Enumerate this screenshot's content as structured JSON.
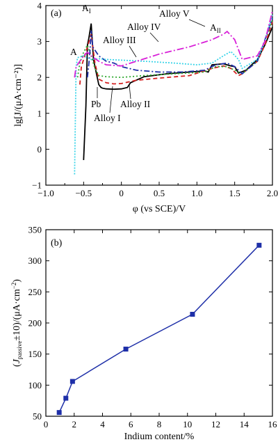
{
  "chart_data": [
    {
      "panel": "(a)",
      "type": "line",
      "xlabel": "φ (vs SCE)/V",
      "ylabel": "lg[J/(μA·cm⁻²)]",
      "xlim": [
        -1.0,
        2.0
      ],
      "ylim": [
        -1,
        4
      ],
      "xticks": [
        "−1.0",
        "−0.5",
        "0",
        "0.5",
        "1.0",
        "1.5",
        "2.0"
      ],
      "yticks": [
        "−1",
        "0",
        "1",
        "2",
        "3",
        "4"
      ],
      "grid": false,
      "series": [
        {
          "name": "Pb",
          "color": "#000000",
          "dash": "solid",
          "x": [
            -0.5,
            -0.47,
            -0.45,
            -0.43,
            -0.4,
            -0.37,
            -0.33,
            -0.3,
            -0.27,
            -0.25,
            -0.2,
            -0.1,
            0,
            0.08,
            0.12,
            0.3,
            0.6,
            0.9,
            1.1,
            1.15,
            1.2,
            1.35,
            1.45,
            1.5,
            1.55,
            1.65,
            1.8,
            1.9,
            2.0
          ],
          "y": [
            -0.3,
            1.2,
            2.9,
            3.1,
            3.5,
            2.5,
            2.1,
            1.8,
            1.72,
            1.7,
            1.68,
            1.67,
            1.68,
            1.72,
            1.85,
            2.02,
            2.1,
            2.15,
            2.18,
            2.15,
            2.35,
            2.38,
            2.32,
            2.3,
            2.12,
            2.2,
            2.5,
            2.9,
            3.4
          ]
        },
        {
          "name": "Alloy I",
          "color": "#d42020",
          "dash": "6,4",
          "x": [
            -0.55,
            -0.53,
            -0.5,
            -0.45,
            -0.4,
            -0.35,
            -0.3,
            -0.2,
            -0.1,
            0,
            0.2,
            0.5,
            0.9,
            1.2,
            1.35,
            1.45,
            1.55,
            1.6,
            1.8,
            1.9,
            2.0
          ],
          "y": [
            1.8,
            2.3,
            2.5,
            2.85,
            3.2,
            2.4,
            1.95,
            1.85,
            1.82,
            1.83,
            1.92,
            1.98,
            2.05,
            2.25,
            2.32,
            2.25,
            2.05,
            2.1,
            2.45,
            2.9,
            3.55
          ]
        },
        {
          "name": "Alloy II",
          "color": "#2ea82e",
          "dash": "2,3",
          "x": [
            -0.58,
            -0.55,
            -0.5,
            -0.45,
            -0.4,
            -0.35,
            -0.3,
            -0.2,
            0,
            0.3,
            0.7,
            1.1,
            1.25,
            1.4,
            1.5,
            1.6,
            1.8,
            2.0
          ],
          "y": [
            2.0,
            2.4,
            2.7,
            2.9,
            2.6,
            2.25,
            2.05,
            2.02,
            2.0,
            2.05,
            2.1,
            2.15,
            2.3,
            2.3,
            2.2,
            2.1,
            2.45,
            3.6
          ]
        },
        {
          "name": "Alloy III",
          "color": "#1e2fa8",
          "dash": "8,3,2,3",
          "x": [
            -0.45,
            -0.42,
            -0.4,
            -0.38,
            -0.3,
            -0.2,
            -0.1,
            0,
            0.2,
            0.5,
            0.8,
            1.1,
            1.25,
            1.4,
            1.5,
            1.6,
            1.8,
            2.0
          ],
          "y": [
            2.0,
            2.6,
            3.3,
            2.85,
            2.6,
            2.45,
            2.4,
            2.3,
            2.2,
            2.15,
            2.15,
            2.2,
            2.35,
            2.4,
            2.3,
            2.1,
            2.45,
            3.65
          ]
        },
        {
          "name": "Alloy IV",
          "color": "#3ad4e8",
          "dash": "2,2",
          "x": [
            -0.62,
            -0.61,
            -0.6,
            -0.58,
            -0.5,
            -0.45,
            -0.4,
            -0.3,
            -0.2,
            0,
            0.3,
            0.7,
            1.0,
            1.2,
            1.35,
            1.45,
            1.55,
            1.6,
            1.8,
            1.9,
            2.0
          ],
          "y": [
            -0.7,
            0.8,
            2.3,
            2.55,
            2.6,
            2.55,
            2.5,
            2.52,
            2.5,
            2.48,
            2.45,
            2.4,
            2.35,
            2.4,
            2.6,
            2.72,
            2.5,
            2.25,
            2.5,
            3.0,
            3.75
          ]
        },
        {
          "name": "Alloy V",
          "color": "#d81fd8",
          "dash": "10,3,2,3",
          "x": [
            -0.62,
            -0.6,
            -0.55,
            -0.5,
            -0.45,
            -0.4,
            -0.3,
            -0.2,
            0,
            0.2,
            0.5,
            0.9,
            1.2,
            1.35,
            1.4,
            1.5,
            1.6,
            1.8,
            1.9,
            2.0
          ],
          "y": [
            2.0,
            2.3,
            2.45,
            2.6,
            2.7,
            2.6,
            2.45,
            2.35,
            2.32,
            2.45,
            2.65,
            2.85,
            3.05,
            3.2,
            3.28,
            3.05,
            2.5,
            2.6,
            3.0,
            3.85
          ]
        }
      ],
      "annotations": [
        {
          "text": "A",
          "sub": "I"
        },
        {
          "text": "A",
          "sub": ""
        },
        {
          "text": "A",
          "sub": "II"
        },
        {
          "text": "Alloy V"
        },
        {
          "text": "Alloy IV"
        },
        {
          "text": "Alloy III"
        },
        {
          "text": "Pb"
        },
        {
          "text": "Alloy II"
        },
        {
          "text": "Alloy I"
        }
      ]
    },
    {
      "panel": "(b)",
      "type": "line",
      "xlabel": "Indium content/%",
      "ylabel": "(J passive ±10)/(μA·cm⁻²)",
      "xlim": [
        -1,
        16
      ],
      "ylim": [
        50,
        350
      ],
      "xticks": [
        "0",
        "2",
        "4",
        "6",
        "8",
        "10",
        "12",
        "14",
        "16"
      ],
      "yticks": [
        "50",
        "100",
        "150",
        "200",
        "250",
        "300",
        "350"
      ],
      "grid": false,
      "series": [
        {
          "color": "#1e2fa8",
          "marker": "square",
          "x": [
            0,
            0.5,
            1,
            5,
            10,
            15
          ],
          "y": [
            56,
            79,
            106,
            158,
            214,
            325
          ]
        }
      ]
    }
  ]
}
